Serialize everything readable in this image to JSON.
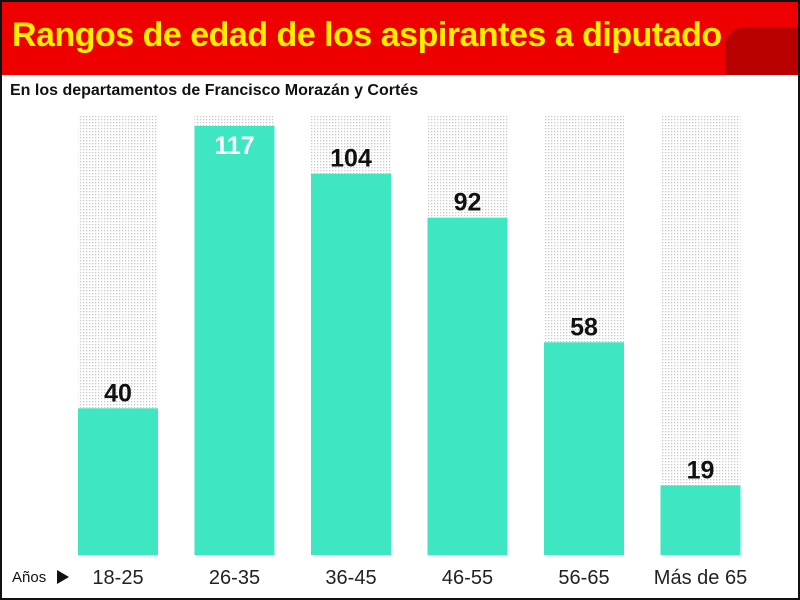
{
  "header": {
    "title": "Rangos de edad de los aspirantes a diputado"
  },
  "subtitle": "En los departamentos de Francisco Morazán y Cortés",
  "colors": {
    "header_bg": "#ee0000",
    "header_tab": "#b80000",
    "title_text": "#ffee00",
    "bar": "#3ee6c2",
    "column_bg_dots": "#c8c8c8",
    "label_dark": "#111111",
    "label_light": "#ffffff"
  },
  "chart_data": {
    "type": "bar",
    "xlabel": "Años",
    "categories": [
      "18-25",
      "26-35",
      "36-45",
      "46-55",
      "56-65",
      "Más de 65"
    ],
    "values": [
      40,
      117,
      104,
      92,
      58,
      19
    ],
    "ylim": [
      0,
      117
    ],
    "grid": false,
    "legend": "none"
  }
}
